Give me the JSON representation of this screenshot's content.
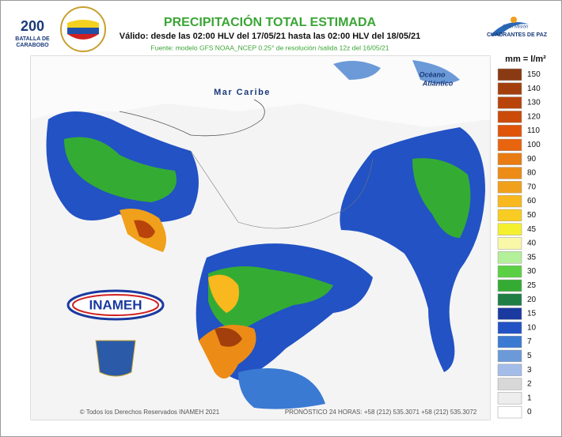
{
  "header": {
    "title": "PRECIPITACIÓN TOTAL ESTIMADA",
    "subtitle": "Válido: desde las 02:00 HLV del 17/05/21 hasta las 02:00 HLV del 18/05/21",
    "source": "Fuente: modelo GFS NOAA_NCEP 0.25° de resolución /salida 12z del 16/05/21"
  },
  "logos": {
    "anniversary": [
      "200",
      "BATALLA DE",
      "CARABOBO"
    ],
    "program": [
      "Gran Misión",
      "CUADRANTES DE PAZ"
    ],
    "institute": "INAMEH"
  },
  "map": {
    "labels": [
      "Mar Caribe",
      "Océano",
      "Atlántico"
    ]
  },
  "legend": {
    "title": "mm = l/m²",
    "items": [
      {
        "label": 150,
        "color": "#8a3a12"
      },
      {
        "label": 140,
        "color": "#a23f0c"
      },
      {
        "label": 130,
        "color": "#b8440c"
      },
      {
        "label": 120,
        "color": "#cc4a0a"
      },
      {
        "label": 110,
        "color": "#e0540a"
      },
      {
        "label": 100,
        "color": "#e8640e"
      },
      {
        "label": 90,
        "color": "#e87c12"
      },
      {
        "label": 80,
        "color": "#ec8c16"
      },
      {
        "label": 70,
        "color": "#f0a01a"
      },
      {
        "label": 60,
        "color": "#f8b81e"
      },
      {
        "label": 50,
        "color": "#f8cc22"
      },
      {
        "label": 45,
        "color": "#f4f030"
      },
      {
        "label": 40,
        "color": "#f8f8a8"
      },
      {
        "label": 35,
        "color": "#b4f09a"
      },
      {
        "label": 30,
        "color": "#5cd044"
      },
      {
        "label": 25,
        "color": "#34ac34"
      },
      {
        "label": 20,
        "color": "#1e7e44"
      },
      {
        "label": 15,
        "color": "#1a3aa0"
      },
      {
        "label": 10,
        "color": "#2252c4"
      },
      {
        "label": 7,
        "color": "#3a7ad2"
      },
      {
        "label": 5,
        "color": "#6c9ad8"
      },
      {
        "label": 3,
        "color": "#a4bce8"
      },
      {
        "label": 2,
        "color": "#d8d8d8"
      },
      {
        "label": 1,
        "color": "#ededed"
      },
      {
        "label": 0,
        "color": "#ffffff"
      }
    ]
  },
  "footer": {
    "copyright": "© Todos los Derechos Reservados INAMEH 2021",
    "phones": "PRONÓSTICO 24 HORAS: +58 (212) 535.3071 +58 (212) 535.3072"
  }
}
